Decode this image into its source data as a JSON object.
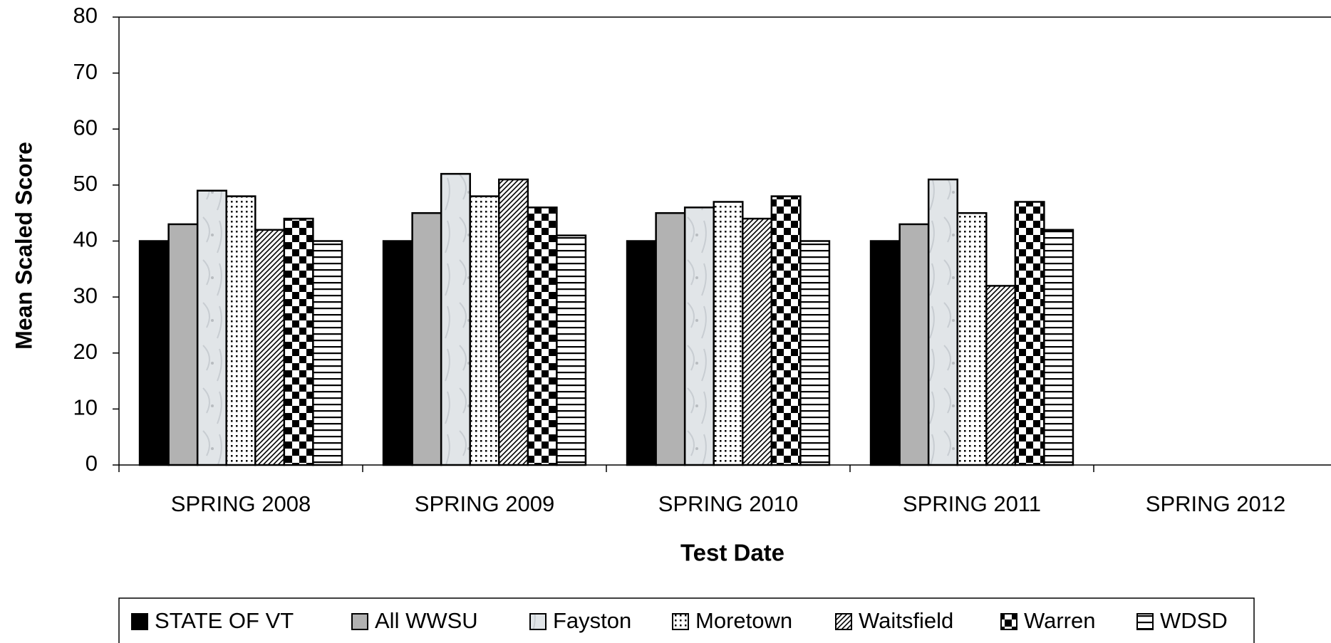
{
  "chart_data": {
    "type": "bar",
    "x_label": "Test Date",
    "y_label": "Mean Scaled Score",
    "categories": [
      "SPRING 2008",
      "SPRING 2009",
      "SPRING 2010",
      "SPRING 2011",
      "SPRING 2012"
    ],
    "series": [
      {
        "name": "STATE OF VT",
        "color": "#000000",
        "pattern": "solid",
        "values": [
          40,
          40,
          40,
          40,
          null
        ]
      },
      {
        "name": "All WWSU",
        "color": "#b2b2b2",
        "pattern": "solid",
        "values": [
          43,
          45,
          45,
          43,
          null
        ]
      },
      {
        "name": "Fayston",
        "color": "#dfe3e7",
        "pattern": "texture",
        "values": [
          49,
          52,
          46,
          51,
          null
        ]
      },
      {
        "name": "Moretown",
        "color": "#000000",
        "pattern": "dots",
        "values": [
          48,
          48,
          47,
          45,
          null
        ]
      },
      {
        "name": "Waitsfield",
        "color": "#000000",
        "pattern": "diagonal",
        "values": [
          42,
          51,
          44,
          32,
          null
        ]
      },
      {
        "name": "Warren",
        "color": "#000000",
        "pattern": "checker",
        "values": [
          44,
          46,
          48,
          47,
          null
        ]
      },
      {
        "name": "WDSD",
        "color": "#000000",
        "pattern": "horizontal",
        "values": [
          40,
          41,
          40,
          42,
          null
        ]
      }
    ],
    "ylim": [
      0,
      80
    ],
    "yticks": [
      0,
      10,
      20,
      30,
      40,
      50,
      60,
      70,
      80
    ],
    "grid": false,
    "legend": "bottom"
  }
}
